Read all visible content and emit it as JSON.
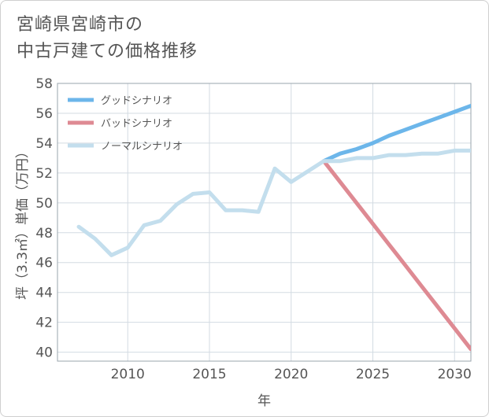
{
  "chart_data": {
    "type": "line",
    "title_lines": [
      "宮崎県宮崎市の",
      "中古戸建ての価格推移"
    ],
    "xlabel": "年",
    "ylabel": "坪（3.3㎡）単価（万円）",
    "xlim": [
      2005.7,
      2031
    ],
    "ylim": [
      39.4,
      58
    ],
    "x_ticks": [
      2010,
      2015,
      2020,
      2025,
      2030
    ],
    "y_ticks": [
      40,
      42,
      44,
      46,
      48,
      50,
      52,
      54,
      56,
      58
    ],
    "grid": true,
    "legend_position": "top-left",
    "series": [
      {
        "name": "グッドシナリオ",
        "color": "#6cb6ea",
        "x": [
          2022,
          2023,
          2024,
          2025,
          2026,
          2027,
          2028,
          2029,
          2030,
          2031
        ],
        "y": [
          52.8,
          53.3,
          53.6,
          54.0,
          54.5,
          54.9,
          55.3,
          55.7,
          56.1,
          56.5
        ]
      },
      {
        "name": "バッドシナリオ",
        "color": "#de8a93",
        "x": [
          2022,
          2023,
          2024,
          2025,
          2026,
          2027,
          2028,
          2029,
          2030,
          2031
        ],
        "y": [
          52.8,
          51.4,
          50.0,
          48.6,
          47.2,
          45.8,
          44.4,
          43.0,
          41.6,
          40.2
        ]
      },
      {
        "name": "ノーマルシナリオ",
        "color": "#c3deed",
        "x": [
          2007,
          2008,
          2009,
          2010,
          2011,
          2012,
          2013,
          2014,
          2015,
          2016,
          2017,
          2018,
          2019,
          2020,
          2021,
          2022,
          2023,
          2024,
          2025,
          2026,
          2027,
          2028,
          2029,
          2030,
          2031
        ],
        "y": [
          48.4,
          47.6,
          46.5,
          47.0,
          48.5,
          48.8,
          49.9,
          50.6,
          50.7,
          49.5,
          49.5,
          49.4,
          52.3,
          51.4,
          52.1,
          52.8,
          52.8,
          53.0,
          53.0,
          53.2,
          53.2,
          53.3,
          53.3,
          53.5,
          53.5
        ]
      }
    ]
  }
}
